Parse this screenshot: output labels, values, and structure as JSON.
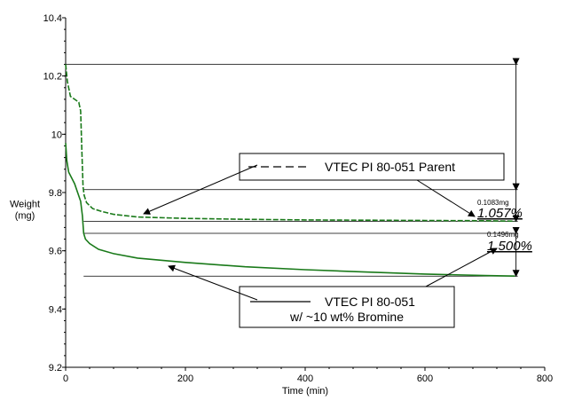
{
  "chart_data": {
    "type": "line",
    "title": "",
    "xlabel": "Time (min)",
    "ylabel": [
      "Weight",
      "(mg)"
    ],
    "xlim": [
      0,
      800
    ],
    "ylim": [
      9.2,
      10.4
    ],
    "xticks": [
      0,
      200,
      400,
      600,
      800
    ],
    "yticks": [
      9.2,
      9.4,
      9.6,
      9.8,
      10,
      10.2,
      10.4
    ],
    "xtick_labels": [
      "0",
      "200",
      "400",
      "600",
      "800"
    ],
    "ytick_labels": [
      "9.2",
      "9.4",
      "9.6",
      "9.8",
      "10",
      "10.2",
      "10.4"
    ],
    "grid": false,
    "series": [
      {
        "name": "VTEC PI 80-051 Parent",
        "color": "#1a7a1a",
        "dash": "dashed",
        "x": [
          0,
          3,
          8,
          15,
          22,
          25,
          27,
          29,
          31,
          35,
          45,
          60,
          80,
          120,
          200,
          300,
          400,
          500,
          600,
          700,
          750
        ],
        "y": [
          10.24,
          10.18,
          10.13,
          10.12,
          10.11,
          10.08,
          9.95,
          9.82,
          9.79,
          9.765,
          9.745,
          9.735,
          9.725,
          9.716,
          9.711,
          9.708,
          9.706,
          9.705,
          9.704,
          9.703,
          9.7015
        ]
      },
      {
        "name": "VTEC PI 80-051 w/ ~10 wt% Bromine",
        "color": "#1a7a1a",
        "dash": "solid",
        "x": [
          0,
          2,
          5,
          10,
          15,
          20,
          25,
          28,
          30,
          33,
          40,
          55,
          80,
          120,
          200,
          300,
          400,
          500,
          600,
          700,
          750
        ],
        "y": [
          9.97,
          9.91,
          9.87,
          9.85,
          9.83,
          9.8,
          9.77,
          9.72,
          9.66,
          9.64,
          9.625,
          9.605,
          9.59,
          9.575,
          9.56,
          9.545,
          9.535,
          9.527,
          9.52,
          9.515,
          9.513
        ]
      }
    ],
    "reference_lines": {
      "y_values": [
        10.24,
        9.81,
        9.7015,
        9.66,
        9.513
      ],
      "x_start": 0,
      "x_end": 755
    },
    "annotations": [
      {
        "small": "0.1083mg",
        "big": "1.057%"
      },
      {
        "small": "0.1496mg",
        "big": "1.500%"
      }
    ],
    "legend": [
      {
        "text": "VTEC PI 80-051 Parent",
        "dash": "dashed"
      },
      {
        "text": "VTEC PI 80-051",
        "text2": "w/ ~10 wt% Bromine",
        "dash": "solid"
      }
    ]
  }
}
